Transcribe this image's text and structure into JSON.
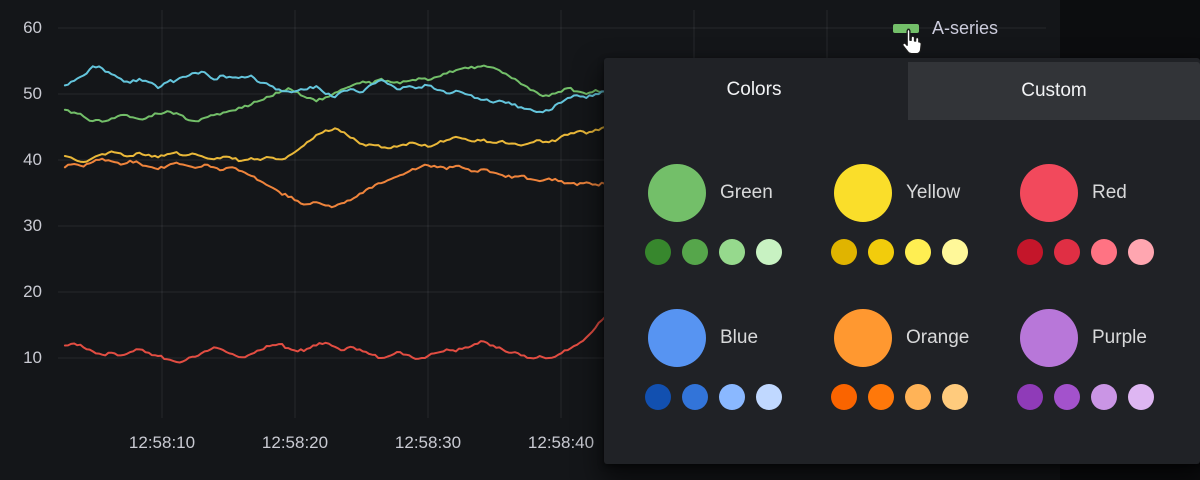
{
  "legend": {
    "series_label": "A-series",
    "swatch_color": "#73BF69"
  },
  "color_picker": {
    "tabs": [
      {
        "label": "Colors",
        "active": true
      },
      {
        "label": "Custom",
        "active": false
      }
    ],
    "palette": [
      {
        "name": "Green",
        "main": "#73BF69",
        "shades": [
          "#37872D",
          "#56A64B",
          "#96D98D",
          "#C8F2C2"
        ]
      },
      {
        "name": "Yellow",
        "main": "#FADE2A",
        "shades": [
          "#E0B400",
          "#F2CC0C",
          "#FFEE52",
          "#FFF899"
        ]
      },
      {
        "name": "Red",
        "main": "#F2495C",
        "shades": [
          "#C4162A",
          "#E02F44",
          "#FF7383",
          "#FFA6B0"
        ]
      },
      {
        "name": "Blue",
        "main": "#5794F2",
        "shades": [
          "#1250B0",
          "#3274D9",
          "#8AB8FF",
          "#C0D8FF"
        ]
      },
      {
        "name": "Orange",
        "main": "#FF9830",
        "shades": [
          "#FA6400",
          "#FF780A",
          "#FFB357",
          "#FFCB7D"
        ]
      },
      {
        "name": "Purple",
        "main": "#B877D9",
        "shades": [
          "#8F3BB8",
          "#A352CC",
          "#CA95E5",
          "#DEB6F2"
        ]
      }
    ]
  },
  "chart_data": {
    "type": "line",
    "title": "",
    "x_axis": {
      "tick_labels": [
        "12:58:10",
        "12:58:20",
        "12:58:30",
        "12:58:40"
      ],
      "tick_seconds": [
        10,
        20,
        30,
        40
      ],
      "grid_seconds": [
        10,
        20,
        30,
        40,
        50,
        60
      ]
    },
    "y_axis": {
      "ticks": [
        60,
        50,
        40,
        30,
        20,
        10
      ],
      "range": [
        5,
        62
      ]
    },
    "grid": true,
    "legend_position": "top-right",
    "t_start": 2.7,
    "t_step": 0.7,
    "series": [
      {
        "name": "green (A-series)",
        "color": "#73BF69",
        "values": [
          47.6,
          47.2,
          46.6,
          45.9,
          45.8,
          46.3,
          46.8,
          46.5,
          46.2,
          46.6,
          47.0,
          47.4,
          47.1,
          46.2,
          45.9,
          46.4,
          46.8,
          47.2,
          47.5,
          47.9,
          48.4,
          49.0,
          49.6,
          50.2,
          50.9,
          50.3,
          49.4,
          48.9,
          49.5,
          50.2,
          50.8,
          51.4,
          51.9,
          51.5,
          52.3,
          51.8,
          51.6,
          52.0,
          52.4,
          52.1,
          52.6,
          53.1,
          53.6,
          54.0,
          53.9,
          54.3,
          54.0,
          53.2,
          52.4,
          51.5,
          50.6,
          49.9,
          49.7,
          50.3,
          50.9,
          50.4,
          50.0,
          50.6,
          50.4
        ]
      },
      {
        "name": "yellow",
        "color": "#EAB839",
        "values": [
          40.6,
          40.1,
          39.7,
          40.3,
          40.9,
          41.3,
          41.0,
          40.6,
          41.1,
          40.8,
          40.4,
          40.9,
          41.2,
          40.7,
          40.9,
          40.4,
          40.1,
          40.5,
          40.2,
          39.9,
          40.3,
          40.0,
          40.4,
          40.1,
          40.6,
          41.5,
          42.7,
          43.8,
          44.5,
          44.8,
          44.2,
          43.3,
          42.4,
          42.3,
          41.9,
          41.8,
          42.2,
          42.6,
          42.3,
          42.0,
          42.5,
          43.0,
          43.5,
          43.2,
          42.8,
          43.1,
          42.6,
          42.9,
          42.5,
          42.2,
          42.6,
          43.0,
          42.7,
          43.2,
          43.8,
          44.3,
          44.0,
          44.6,
          45.0
        ]
      },
      {
        "name": "cyan",
        "color": "#64C5DC",
        "values": [
          51.3,
          52.0,
          52.8,
          54.2,
          53.9,
          53.0,
          52.3,
          51.7,
          52.3,
          51.8,
          50.9,
          51.8,
          52.1,
          52.6,
          53.2,
          53.3,
          52.2,
          52.8,
          52.5,
          52.6,
          52.8,
          51.7,
          51.3,
          50.7,
          50.4,
          50.5,
          50.7,
          51.2,
          50.0,
          49.5,
          50.5,
          50.7,
          50.3,
          51.5,
          52.1,
          51.4,
          50.7,
          51.2,
          51.0,
          51.3,
          50.6,
          50.1,
          50.5,
          50.0,
          49.4,
          49.1,
          48.7,
          48.9,
          48.4,
          48.0,
          47.7,
          47.3,
          47.5,
          48.6,
          49.4,
          49.8,
          49.4,
          50.0,
          50.4
        ]
      },
      {
        "name": "orange",
        "color": "#EF843C",
        "values": [
          38.9,
          39.4,
          39.0,
          39.7,
          40.2,
          39.8,
          39.3,
          39.9,
          39.5,
          39.0,
          38.6,
          39.1,
          39.6,
          39.2,
          38.8,
          39.3,
          38.9,
          38.5,
          38.9,
          38.3,
          37.6,
          36.8,
          36.0,
          35.2,
          34.4,
          33.8,
          33.3,
          33.6,
          33.1,
          33.0,
          33.5,
          34.2,
          35.0,
          35.8,
          36.5,
          37.1,
          37.7,
          38.3,
          38.8,
          39.2,
          38.9,
          38.6,
          39.1,
          38.7,
          38.3,
          38.6,
          38.1,
          37.7,
          37.3,
          37.6,
          37.1,
          36.8,
          37.2,
          36.8,
          36.5,
          36.2,
          36.6,
          36.3,
          36.4
        ]
      },
      {
        "name": "red",
        "color": "#E24D42",
        "values": [
          11.9,
          12.2,
          11.6,
          11.0,
          10.5,
          10.8,
          10.4,
          10.9,
          11.3,
          10.8,
          10.3,
          9.8,
          9.4,
          9.7,
          10.2,
          11.0,
          11.6,
          11.2,
          10.6,
          10.1,
          10.6,
          11.2,
          11.8,
          12.1,
          11.5,
          11.0,
          11.4,
          11.9,
          12.3,
          11.7,
          11.2,
          11.6,
          11.0,
          10.5,
          10.0,
          10.4,
          10.9,
          10.4,
          9.9,
          10.3,
          10.8,
          11.3,
          11.0,
          11.6,
          12.1,
          12.5,
          11.9,
          11.3,
          10.8,
          10.4,
          10.0,
          10.3,
          10.0,
          10.5,
          11.2,
          12.0,
          13.1,
          14.6,
          16.2
        ]
      }
    ]
  },
  "colors": {
    "panel_bg": "#141619",
    "page_bg": "#0c0d0f",
    "popup_bg": "#202226",
    "tab_inactive_bg": "#323438",
    "grid_line": "rgba(204,204,220,0.10)",
    "axis_text": "#c9cad2",
    "label_text": "#d8d9da"
  }
}
